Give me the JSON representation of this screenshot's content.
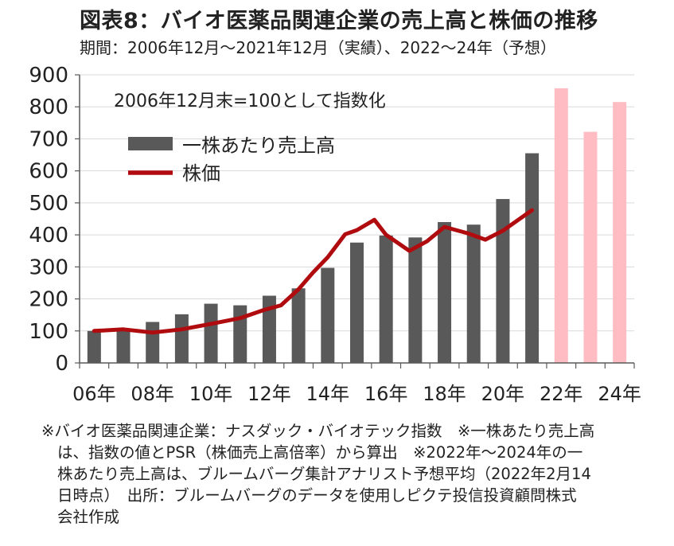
{
  "title": "図表8：バイオ医薬品関連企業の売上高と株価の推移",
  "subtitle": "期間：2006年12月～2021年12月（実績）、2022～24年（予想）",
  "footnote": {
    "line1": "※バイオ医薬品関連企業：ナスダック・バイオテック指数　※一株あたり売上高",
    "line2": "は、指数の値とPSR（株価売上高倍率）から算出　※2022年～2024年の一",
    "line3": "株あたり売上高は、ブルームバーグ集計アナリスト予想平均（2022年2月14",
    "line4": "日時点）　出所：ブルームバーグのデータを使用しピクテ投信投資顧問株式",
    "line5": "会社作成"
  },
  "chart_data": {
    "type": "bar",
    "annotation": "2006年12月末=100として指数化",
    "categories": [
      "06",
      "07",
      "08",
      "09",
      "10",
      "11",
      "12",
      "13",
      "14",
      "15",
      "16",
      "17",
      "18",
      "19",
      "20",
      "21",
      "22",
      "23",
      "24"
    ],
    "x_tick_labels": [
      "06年",
      "08年",
      "10年",
      "12年",
      "14年",
      "16年",
      "18年",
      "20年",
      "22年",
      "24年"
    ],
    "ylim": [
      0,
      900
    ],
    "yticks": [
      0,
      100,
      200,
      300,
      400,
      500,
      600,
      700,
      800,
      900
    ],
    "grid": true,
    "legend_position": "top-left",
    "series": [
      {
        "name": "一株あたり売上高",
        "kind": "bar",
        "color": "#595959",
        "forecast_color": "#ffbdc3",
        "values": [
          100,
          105,
          128,
          152,
          185,
          180,
          210,
          233,
          297,
          376,
          398,
          392,
          440,
          432,
          512,
          655,
          858,
          722,
          815
        ],
        "forecast_from_index": 16
      },
      {
        "name": "株価",
        "kind": "line",
        "color": "#b00b0e",
        "x": [
          0,
          1,
          2,
          3,
          4,
          5,
          5.8,
          6.4,
          7,
          7.5,
          8,
          8.6,
          9,
          9.6,
          10,
          10.8,
          11.4,
          12,
          12.8,
          13.4,
          14,
          15
        ],
        "values": [
          100,
          105,
          95,
          105,
          122,
          140,
          165,
          180,
          230,
          283,
          330,
          402,
          415,
          447,
          400,
          350,
          380,
          425,
          405,
          385,
          413,
          477
        ]
      }
    ]
  }
}
